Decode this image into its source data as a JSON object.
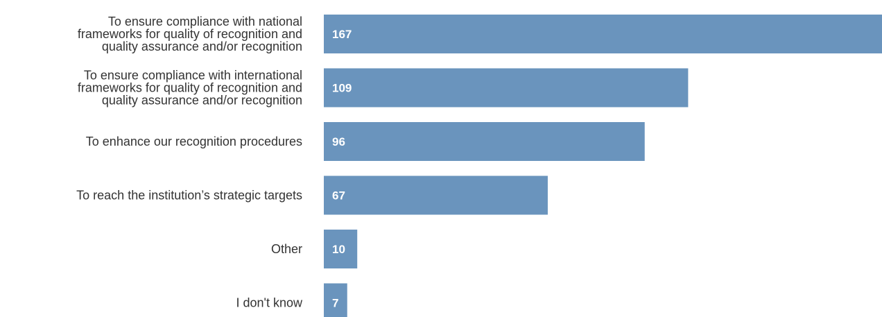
{
  "chart_data": {
    "type": "bar",
    "orientation": "horizontal",
    "categories": [
      "To ensure compliance with national frameworks for quality of recognition and quality assurance and/or recognition",
      "To ensure compliance with international frameworks for quality of recognition and quality assurance and/or recognition",
      "To enhance our recognition procedures",
      "To reach the institution’s strategic targets",
      "Other",
      "I don't know"
    ],
    "category_lines": [
      [
        "To ensure compliance with national",
        "frameworks for quality of recognition and",
        "quality assurance and/or recognition"
      ],
      [
        "To ensure compliance with international",
        "frameworks for quality of recognition and",
        "quality assurance and/or recognition"
      ],
      [
        "To enhance our recognition procedures"
      ],
      [
        "To reach the institution’s strategic targets"
      ],
      [
        "Other"
      ],
      [
        "I don't know"
      ]
    ],
    "values": [
      167,
      109,
      96,
      67,
      10,
      7
    ],
    "data_labels": [
      "167",
      "109",
      "96",
      "67",
      "10",
      "7"
    ],
    "xlim": [
      0,
      167
    ],
    "grid": false,
    "bar_color": "#6a94bd",
    "label_color": "#333333",
    "value_label_color": "#ffffff"
  }
}
